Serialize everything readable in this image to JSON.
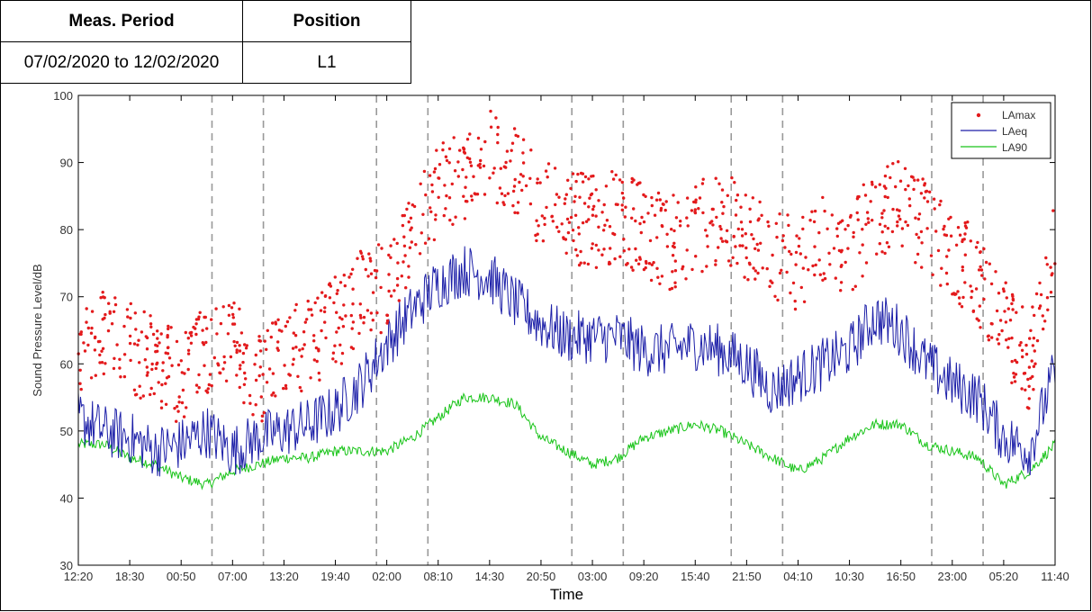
{
  "header": {
    "col1_heading": "Meas. Period",
    "col2_heading": "Position",
    "period_value": "07/02/2020 to 12/02/2020",
    "position_value": "L1"
  },
  "chart_data": {
    "type": "line",
    "xlabel": "Time",
    "ylabel": "Sound Pressure Level/dB",
    "ylim": [
      30,
      100
    ],
    "y_ticks": [
      30,
      40,
      50,
      60,
      70,
      80,
      90,
      100
    ],
    "x_tick_labels": [
      "12:20",
      "18:30",
      "00:50",
      "07:00",
      "13:20",
      "19:40",
      "02:00",
      "08:10",
      "14:30",
      "20:50",
      "03:00",
      "09:20",
      "15:40",
      "21:50",
      "04:10",
      "10:30",
      "16:50",
      "23:00",
      "05:20",
      "11:40"
    ],
    "x_index_range": [
      0,
      19
    ],
    "day_boundaries": [
      2.6,
      3.6,
      5.8,
      6.8,
      9.6,
      10.6,
      12.7,
      13.7,
      16.6,
      17.6
    ],
    "grid": false,
    "legend_position": "top-right",
    "colors": {
      "LAmax": "#e31a1c",
      "LAeq": "#1c1fa8",
      "LA90": "#19c419",
      "day_line": "#999999"
    },
    "series": [
      {
        "name": "LAmax",
        "marker": "dot",
        "x": [
          0,
          0.5,
          1,
          1.5,
          2,
          2.5,
          3,
          3.5,
          4,
          4.5,
          5,
          5.5,
          6,
          6.5,
          7,
          7.5,
          8,
          8.5,
          9,
          9.5,
          10,
          10.5,
          11,
          11.5,
          12,
          12.5,
          13,
          13.5,
          14,
          14.5,
          15,
          15.5,
          16,
          16.5,
          17,
          17.5,
          18,
          18.5,
          19
        ],
        "values": [
          62,
          65,
          63,
          60,
          58,
          62,
          63,
          57,
          61,
          63,
          66,
          70,
          72,
          80,
          86,
          88,
          91,
          88,
          84,
          82,
          81,
          82,
          80,
          78,
          80,
          82,
          79,
          76,
          75,
          78,
          77,
          82,
          84,
          80,
          76,
          73,
          66,
          60,
          80
        ]
      },
      {
        "name": "LAeq",
        "x": [
          0,
          0.5,
          1,
          1.5,
          2,
          2.5,
          3,
          3.5,
          4,
          4.5,
          5,
          5.5,
          6,
          6.5,
          7,
          7.5,
          8,
          8.5,
          9,
          9.5,
          10,
          10.5,
          11,
          11.5,
          12,
          12.5,
          13,
          13.5,
          14,
          14.5,
          15,
          15.5,
          16,
          16.5,
          17,
          17.5,
          18,
          18.5,
          19
        ],
        "values": [
          52,
          50,
          49,
          47,
          48,
          50,
          47,
          49,
          50,
          51,
          53,
          57,
          63,
          68,
          72,
          74,
          73,
          69,
          66,
          64,
          64,
          64,
          62,
          62,
          63,
          62,
          60,
          56,
          58,
          60,
          62,
          67,
          65,
          60,
          57,
          55,
          49,
          47,
          59
        ]
      },
      {
        "name": "LA90",
        "x": [
          0,
          0.5,
          1,
          1.5,
          2,
          2.5,
          3,
          3.5,
          4,
          4.5,
          5,
          5.5,
          6,
          6.5,
          7,
          7.5,
          8,
          8.5,
          9,
          9.5,
          10,
          10.5,
          11,
          11.5,
          12,
          12.5,
          13,
          13.5,
          14,
          14.5,
          15,
          15.5,
          16,
          16.5,
          17,
          17.5,
          18,
          18.5,
          19
        ],
        "values": [
          48,
          48,
          46,
          45,
          43,
          42,
          44,
          45,
          46,
          46,
          47,
          47,
          47,
          49,
          52,
          55,
          55,
          54,
          49,
          47,
          45,
          46,
          49,
          50,
          51,
          50,
          48,
          46,
          44,
          46,
          49,
          51,
          51,
          48,
          47,
          46,
          42,
          44,
          48
        ]
      }
    ]
  }
}
